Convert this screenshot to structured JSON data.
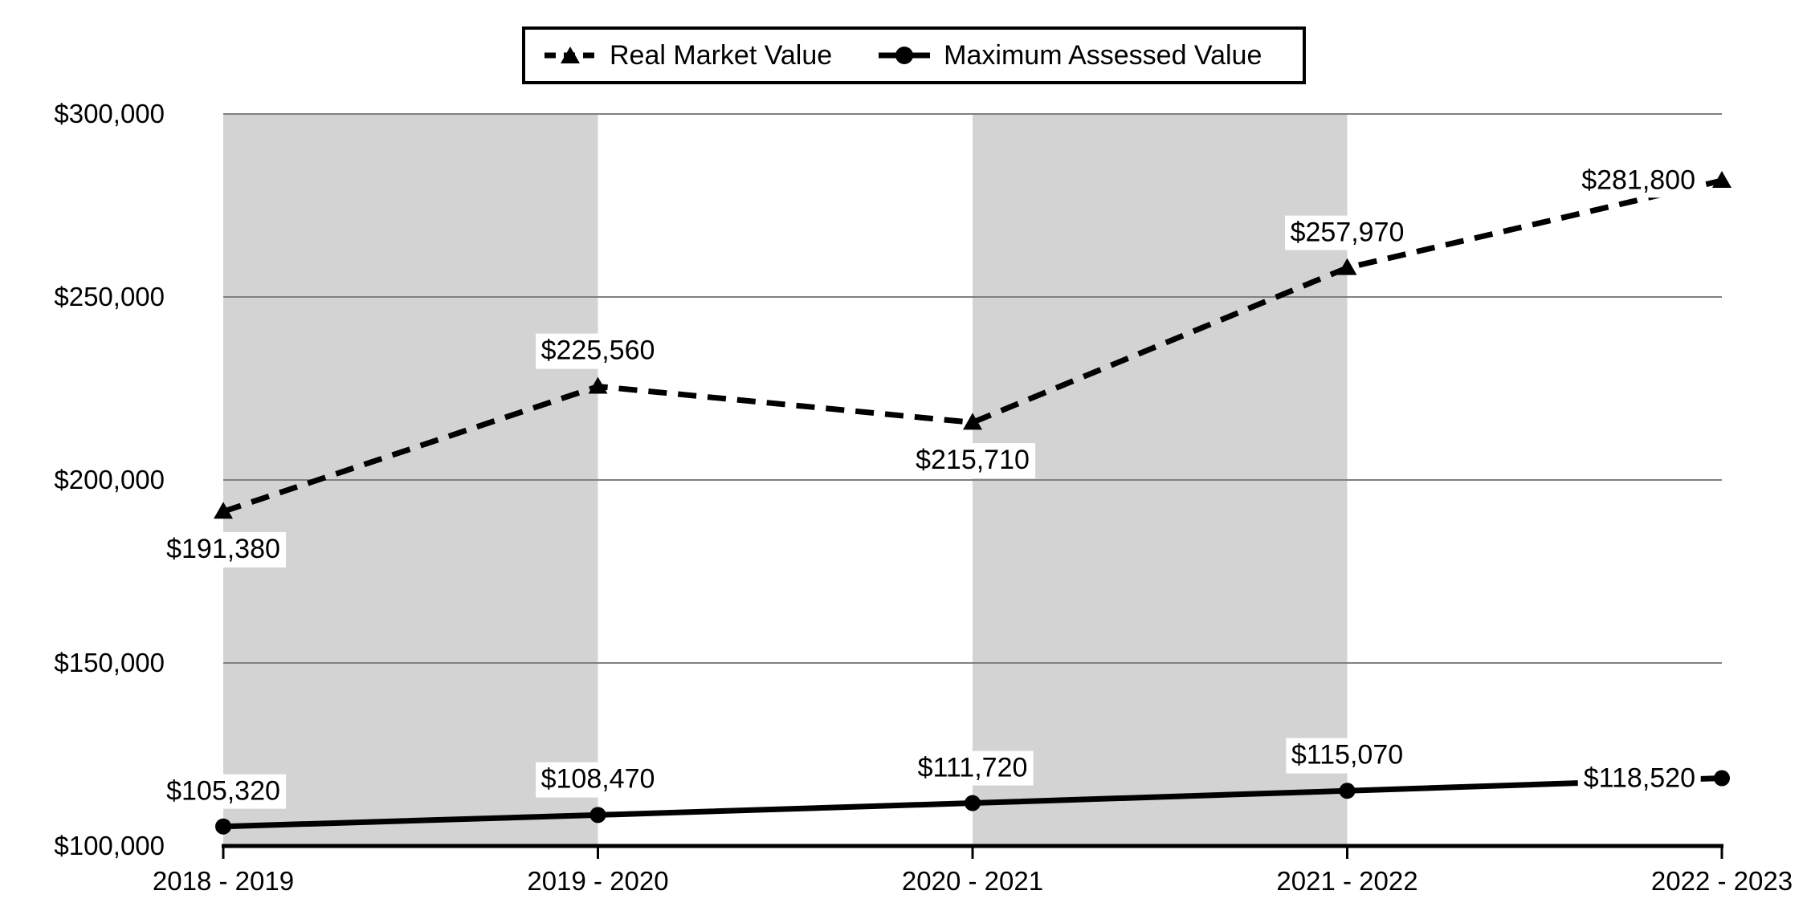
{
  "chart_data": {
    "type": "line",
    "title": "",
    "xlabel": "",
    "ylabel": "",
    "categories": [
      "2018 - 2019",
      "2019 - 2020",
      "2020 - 2021",
      "2021 - 2022",
      "2022 - 2023"
    ],
    "series": [
      {
        "name": "Real Market Value",
        "values": [
          191380,
          225560,
          215710,
          257970,
          281800
        ],
        "display_values": [
          "$191,380",
          "$225,560",
          "$215,710",
          "$257,970",
          "$281,800"
        ],
        "line_style": "dashed",
        "marker": "triangle",
        "color": "#000000"
      },
      {
        "name": "Maximum Assessed Value",
        "values": [
          105320,
          108470,
          111720,
          115070,
          118520
        ],
        "display_values": [
          "$105,320",
          "$108,470",
          "$111,720",
          "$115,070",
          "$118,520"
        ],
        "line_style": "solid",
        "marker": "circle",
        "color": "#000000"
      }
    ],
    "yticks": [
      {
        "value": 300000,
        "label": "$300,000"
      },
      {
        "value": 250000,
        "label": "$250,000"
      },
      {
        "value": 200000,
        "label": "$200,000"
      },
      {
        "value": 150000,
        "label": "$150,000"
      },
      {
        "value": 100000,
        "label": "$100,000"
      }
    ],
    "ylim": [
      100000,
      300000
    ],
    "grid": true,
    "legend_position": "top-center",
    "colors": {
      "band": "#d3d3d3",
      "gridline": "#808080",
      "axis": "#000000",
      "label_background": "#ffffff",
      "background": "#ffffff"
    }
  }
}
